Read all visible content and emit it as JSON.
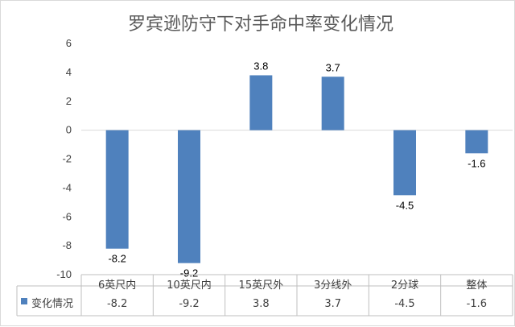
{
  "chart_data": {
    "type": "bar",
    "title": "罗宾逊防守下对手命中率变化情况",
    "categories": [
      "6英尺内",
      "10英尺内",
      "15英尺外",
      "3分线外",
      "2分球",
      "整体"
    ],
    "series": [
      {
        "name": "变化情况",
        "values": [
          -8.2,
          -9.2,
          3.8,
          3.7,
          -4.5,
          -1.6
        ],
        "color": "#4f81bd"
      }
    ],
    "ylim": [
      -10,
      6
    ],
    "yticks": [
      6,
      4,
      2,
      0,
      -2,
      -4,
      -6,
      -8,
      -10
    ],
    "grid": false,
    "legend": "data-table-left",
    "data_table": true
  }
}
